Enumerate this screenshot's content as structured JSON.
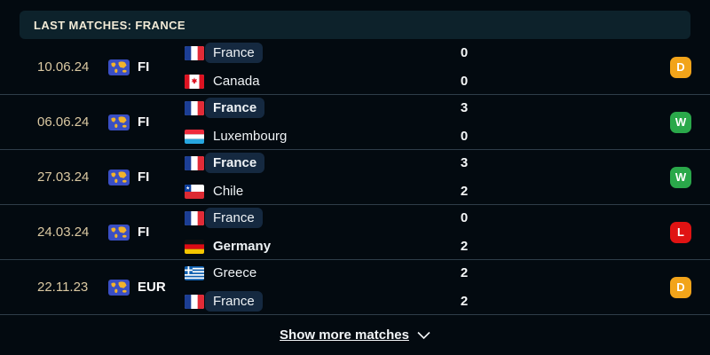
{
  "header": {
    "title": "LAST MATCHES: FRANCE"
  },
  "matches": [
    {
      "date": "10.06.24",
      "competition": {
        "code": "FI",
        "icon": "world-map-icon"
      },
      "teams": [
        {
          "name": "France",
          "flag": "france-flag",
          "pill": true,
          "winner": false,
          "score": "0"
        },
        {
          "name": "Canada",
          "flag": "canada-flag",
          "pill": false,
          "winner": false,
          "score": "0"
        }
      ],
      "result": "D"
    },
    {
      "date": "06.06.24",
      "competition": {
        "code": "FI",
        "icon": "world-map-icon"
      },
      "teams": [
        {
          "name": "France",
          "flag": "france-flag",
          "pill": true,
          "winner": true,
          "score": "3"
        },
        {
          "name": "Luxembourg",
          "flag": "luxembourg-flag",
          "pill": false,
          "winner": false,
          "score": "0"
        }
      ],
      "result": "W"
    },
    {
      "date": "27.03.24",
      "competition": {
        "code": "FI",
        "icon": "world-map-icon"
      },
      "teams": [
        {
          "name": "France",
          "flag": "france-flag",
          "pill": true,
          "winner": true,
          "score": "3"
        },
        {
          "name": "Chile",
          "flag": "chile-flag",
          "pill": false,
          "winner": false,
          "score": "2"
        }
      ],
      "result": "W"
    },
    {
      "date": "24.03.24",
      "competition": {
        "code": "FI",
        "icon": "world-map-icon"
      },
      "teams": [
        {
          "name": "France",
          "flag": "france-flag",
          "pill": true,
          "winner": false,
          "score": "0"
        },
        {
          "name": "Germany",
          "flag": "germany-flag",
          "pill": false,
          "winner": true,
          "score": "2"
        }
      ],
      "result": "L"
    },
    {
      "date": "22.11.23",
      "competition": {
        "code": "EUR",
        "icon": "world-map-icon"
      },
      "teams": [
        {
          "name": "Greece",
          "flag": "greece-flag",
          "pill": false,
          "winner": false,
          "score": "2"
        },
        {
          "name": "France",
          "flag": "france-flag",
          "pill": true,
          "winner": false,
          "score": "2"
        }
      ],
      "result": "D"
    }
  ],
  "result_colors": {
    "W": "#2aa84a",
    "D": "#f2a41a",
    "L": "#e01313"
  },
  "footer": {
    "show_more_label": "Show more matches",
    "chevron_icon": "chevron-down-icon"
  }
}
